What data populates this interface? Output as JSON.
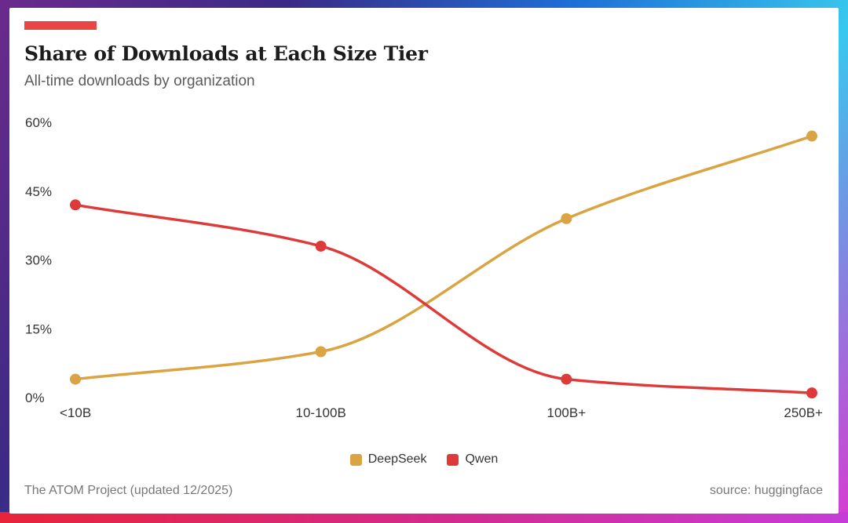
{
  "colors": {
    "accent": "#e84545",
    "deepseek": "#d9a441",
    "qwen": "#df3a3a"
  },
  "chart_data": {
    "type": "line",
    "title": "Share of Downloads at Each Size Tier",
    "subtitle": "All-time downloads by organization",
    "categories": [
      "<10B",
      "10-100B",
      "100B+",
      "250B+"
    ],
    "series": [
      {
        "name": "DeepSeek",
        "values": [
          4,
          10,
          39,
          57
        ]
      },
      {
        "name": "Qwen",
        "values": [
          42,
          33,
          4,
          1
        ]
      }
    ],
    "ylim": [
      0,
      60
    ],
    "yticks": [
      "60%",
      "45%",
      "30%",
      "15%",
      "0%"
    ],
    "grid": false,
    "legend": "bottom-center",
    "smooth": true
  },
  "footer": {
    "left": "The ATOM Project (updated 12/2025)",
    "right": "source: huggingface"
  }
}
